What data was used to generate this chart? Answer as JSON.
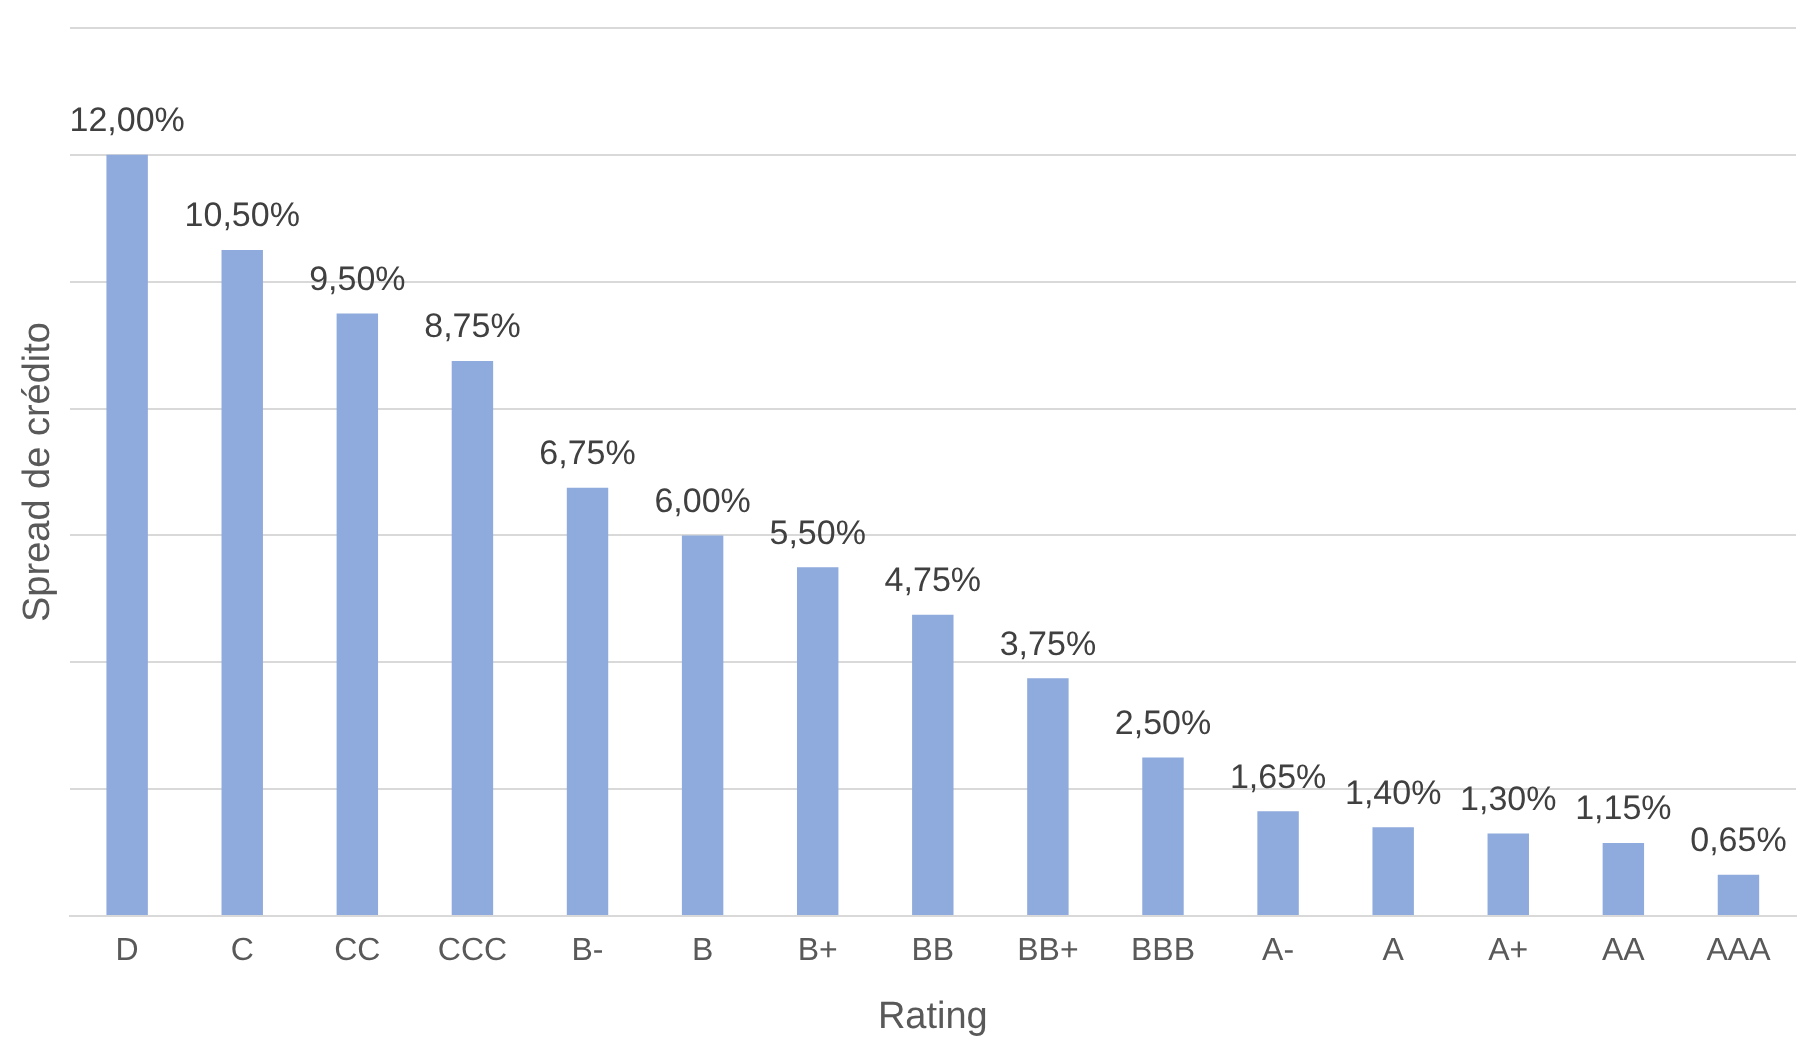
{
  "chart_data": {
    "type": "bar",
    "xlabel": "Rating",
    "ylabel": "Spread de crédito",
    "categories": [
      "D",
      "C",
      "CC",
      "CCC",
      "B-",
      "B",
      "B+",
      "BB",
      "BB+",
      "BBB",
      "A-",
      "A",
      "A+",
      "AA",
      "AAA"
    ],
    "values": [
      12,
      10.5,
      9.5,
      8.75,
      6.75,
      6,
      5.5,
      4.75,
      3.75,
      2.5,
      1.65,
      1.4,
      1.3,
      1.15,
      0.65
    ],
    "value_labels": [
      "12,00%",
      "10,50%",
      "9,50%",
      "8,75%",
      "6,75%",
      "6,00%",
      "5,50%",
      "4,75%",
      "3,75%",
      "2,50%",
      "1,65%",
      "1,40%",
      "1,30%",
      "1,15%",
      "0,65%"
    ],
    "color": "#8faadc",
    "ylim": [
      0,
      14
    ],
    "yticks": [
      {
        "value": 0,
        "label": null
      },
      {
        "value": 2,
        "label": null
      },
      {
        "value": 4,
        "label": null
      },
      {
        "value": 6,
        "label": null
      },
      {
        "value": 8,
        "label": null
      },
      {
        "value": 10,
        "label": null
      },
      {
        "value": 12,
        "label": null
      },
      {
        "value": 14,
        "label": null
      }
    ],
    "grid": "y",
    "legend": false,
    "tick_labels": "x"
  }
}
